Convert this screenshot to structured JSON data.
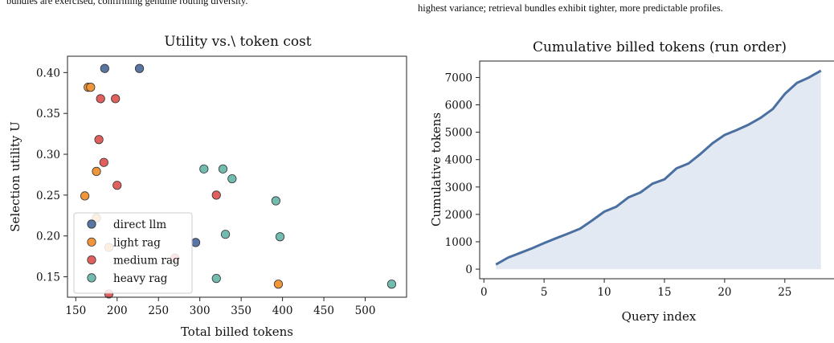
{
  "captions": {
    "left": "bundles are exercised, confirming genuine routing diversity.",
    "right": "highest variance; retrieval bundles exhibit tighter, more predictable profiles."
  },
  "chart_data": [
    {
      "type": "scatter",
      "title": "Utility vs.\\ token cost",
      "xlabel": "Total billed tokens",
      "ylabel": "Selection utility U",
      "xlim": [
        140,
        550
      ],
      "ylim": [
        0.125,
        0.42
      ],
      "xticks": [
        150,
        200,
        250,
        300,
        350,
        400,
        450,
        500
      ],
      "xtick_labels": [
        "150",
        "200",
        "250",
        "300",
        "350",
        "400",
        "450",
        "500"
      ],
      "yticks": [
        0.15,
        0.2,
        0.25,
        0.3,
        0.35,
        0.4
      ],
      "ytick_labels": [
        "0.15",
        "0.20",
        "0.25",
        "0.30",
        "0.35",
        "0.40"
      ],
      "grid": false,
      "legend_position": "lower-left",
      "series": [
        {
          "name": "direct llm",
          "color": "#5875a4",
          "points": [
            [
              185,
              0.405
            ],
            [
              227,
              0.405
            ],
            [
              295,
              0.192
            ]
          ]
        },
        {
          "name": "light rag",
          "color": "#f0953a",
          "points": [
            [
              165,
              0.382
            ],
            [
              168,
              0.382
            ],
            [
              175,
              0.279
            ],
            [
              161,
              0.249
            ],
            [
              175,
              0.222
            ],
            [
              395,
              0.141
            ],
            [
              190,
              0.186
            ]
          ]
        },
        {
          "name": "medium rag",
          "color": "#e0605d",
          "points": [
            [
              180,
              0.368
            ],
            [
              198,
              0.368
            ],
            [
              178,
              0.318
            ],
            [
              184,
              0.29
            ],
            [
              200,
              0.262
            ],
            [
              320,
              0.25
            ],
            [
              270,
              0.173
            ],
            [
              190,
              0.129
            ]
          ]
        },
        {
          "name": "heavy rag",
          "color": "#72bcaf",
          "points": [
            [
              305,
              0.282
            ],
            [
              328,
              0.282
            ],
            [
              339,
              0.27
            ],
            [
              392,
              0.243
            ],
            [
              331,
              0.202
            ],
            [
              397,
              0.199
            ],
            [
              320,
              0.148
            ],
            [
              532,
              0.141
            ]
          ]
        }
      ]
    },
    {
      "type": "area",
      "title": "Cumulative billed tokens (run order)",
      "xlabel": "Query index",
      "ylabel": "Cumulative tokens",
      "xlim": [
        -0.35,
        29.35
      ],
      "ylim": [
        -350,
        7600
      ],
      "xticks": [
        0,
        5,
        10,
        15,
        20,
        25
      ],
      "xtick_labels": [
        "0",
        "5",
        "10",
        "15",
        "20",
        "25"
      ],
      "yticks": [
        0,
        1000,
        2000,
        3000,
        4000,
        5000,
        6000,
        7000
      ],
      "ytick_labels": [
        "0",
        "1000",
        "2000",
        "3000",
        "4000",
        "5000",
        "6000",
        "7000"
      ],
      "grid": false,
      "color": "#4a6fa0",
      "fill_color": "#e3e9f2",
      "x": [
        1,
        2,
        3,
        4,
        5,
        6,
        7,
        8,
        9,
        10,
        11,
        12,
        13,
        14,
        15,
        16,
        17,
        18,
        19,
        20,
        21,
        22,
        23,
        24,
        25,
        26,
        27,
        28
      ],
      "y": [
        170,
        420,
        590,
        760,
        950,
        1130,
        1300,
        1480,
        1780,
        2100,
        2280,
        2620,
        2800,
        3120,
        3280,
        3680,
        3860,
        4210,
        4600,
        4900,
        5080,
        5280,
        5530,
        5850,
        6400,
        6800,
        7000,
        7250
      ]
    }
  ]
}
